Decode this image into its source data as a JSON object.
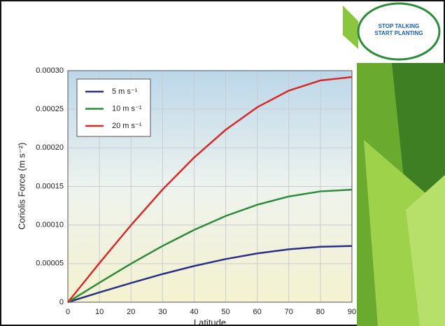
{
  "chart_data": {
    "type": "line",
    "y_label": "Coriolis Force (m s⁻²)",
    "x_label": "Latitude",
    "x": [
      0,
      10,
      20,
      30,
      40,
      50,
      60,
      70,
      80,
      90
    ],
    "xlim": [
      0,
      90
    ],
    "xticks": [
      0,
      10,
      20,
      30,
      40,
      50,
      60,
      70,
      80,
      90
    ],
    "ylim": [
      0,
      0.0003
    ],
    "yticks": [
      0,
      {
        "value": 5e-05,
        "label": "0.00005"
      },
      {
        "value": 0.0001,
        "label": "0.00010"
      },
      {
        "value": 0.00015,
        "label": "0.00015"
      },
      {
        "value": 0.0002,
        "label": "0.00020"
      },
      {
        "value": 0.00025,
        "label": "0.00025"
      },
      {
        "value": 0.0003,
        "label": "0.00030"
      }
    ],
    "grid": true,
    "legend": "upper-left",
    "series": [
      {
        "name": "5 m s⁻¹",
        "color": "#2b2f86",
        "values": [
          0,
          1.27e-05,
          2.49e-05,
          3.65e-05,
          4.69e-05,
          5.59e-05,
          6.32e-05,
          6.85e-05,
          7.18e-05,
          7.29e-05
        ]
      },
      {
        "name": "10 m s⁻¹",
        "color": "#2e8b3a",
        "values": [
          0,
          2.53e-05,
          4.99e-05,
          7.29e-05,
          9.37e-05,
          0.0001117,
          0.0001263,
          0.000137,
          0.0001436,
          0.0001458
        ]
      },
      {
        "name": "20 m s⁻¹",
        "color": "#d92a2a",
        "values": [
          0,
          5.07e-05,
          9.98e-05,
          0.000146,
          0.0001875,
          0.0002234,
          0.0002526,
          0.0002741,
          0.0002873,
          0.0002917
        ]
      }
    ]
  },
  "logo": {
    "line1": "STOP TALKING",
    "line2": "START PLANTING"
  }
}
